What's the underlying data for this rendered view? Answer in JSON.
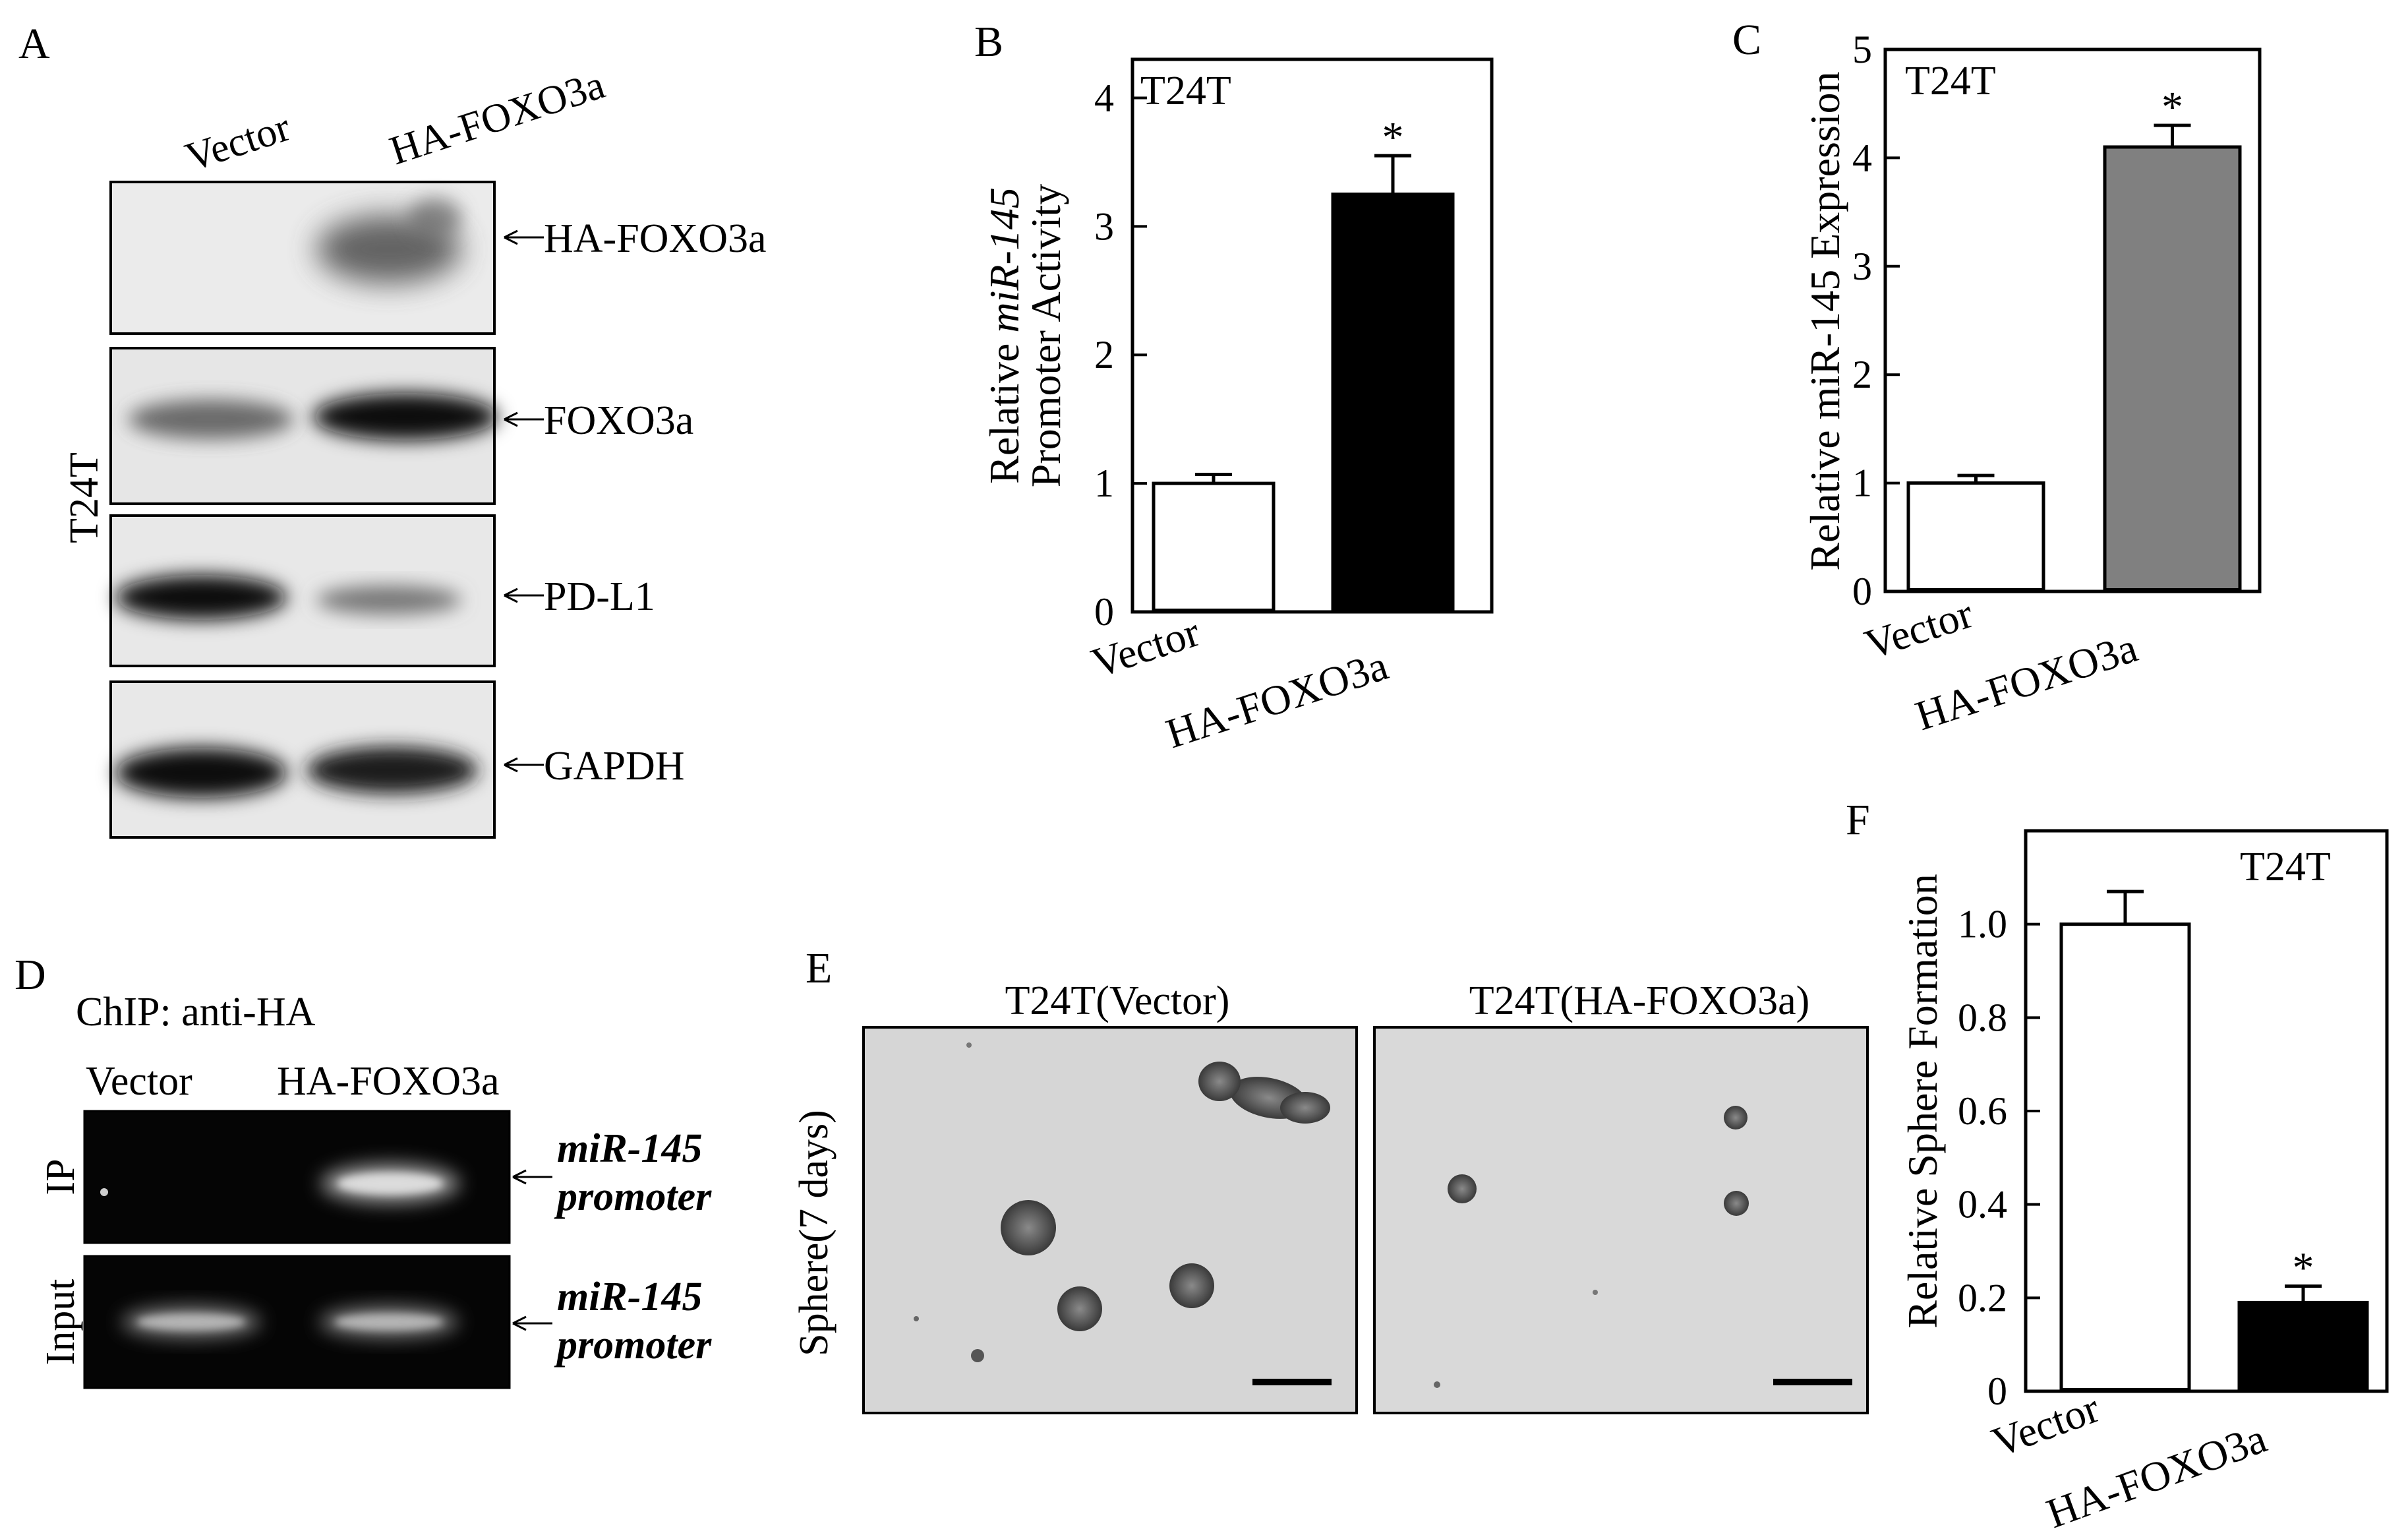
{
  "panels": {
    "A": {
      "letter": "A",
      "lanes": [
        "Vector",
        "HA-FOXO3a"
      ],
      "cell_label": "T24T",
      "blots": [
        "HA-FOXO3a",
        "FOXO3a",
        "PD-L1",
        "GAPDH"
      ]
    },
    "D": {
      "letter": "D",
      "title": "ChIP: anti-HA",
      "lanes": [
        "Vector",
        "HA-FOXO3a"
      ],
      "rows": [
        {
          "label": "IP",
          "target_line1": "miR-145",
          "target_line2": "promoter"
        },
        {
          "label": "Input",
          "target_line1": "miR-145",
          "target_line2": "promoter"
        }
      ]
    },
    "E": {
      "letter": "E",
      "ylabel": "Sphere(7 days)",
      "images": [
        "T24T(Vector)",
        "T24T(HA-FOXO3a)"
      ]
    }
  },
  "chart_data": [
    {
      "panel": "B",
      "type": "bar",
      "inset_label": "T24T",
      "categories": [
        "Vector",
        "HA-FOXO3a"
      ],
      "values": [
        1.0,
        3.25
      ],
      "errors": [
        0.07,
        0.3
      ],
      "significance": [
        "",
        "*"
      ],
      "bar_colors": [
        "#ffffff",
        "#000000"
      ],
      "ylabel_line1_prefix": "Relative ",
      "ylabel_line1_italic": "miR-145",
      "ylabel_line2": "Promoter Activity",
      "ylim": [
        0,
        4.3
      ],
      "yticks": [
        "0",
        "1",
        "2",
        "3",
        "4"
      ]
    },
    {
      "panel": "C",
      "type": "bar",
      "inset_label": "T24T",
      "categories": [
        "Vector",
        "HA-FOXO3a"
      ],
      "values": [
        1.0,
        4.1
      ],
      "errors": [
        0.07,
        0.2
      ],
      "significance": [
        "",
        "*"
      ],
      "bar_colors": [
        "#ffffff",
        "#808080"
      ],
      "ylabel": "Relative miR-145 Expression",
      "ylim": [
        0,
        5.0
      ],
      "yticks": [
        "0",
        "1",
        "2",
        "3",
        "4",
        "5"
      ]
    },
    {
      "panel": "F",
      "type": "bar",
      "inset_label": "T24T",
      "categories": [
        "Vector",
        "HA-FOXO3a"
      ],
      "values": [
        1.0,
        0.19
      ],
      "errors": [
        0.07,
        0.035
      ],
      "significance": [
        "",
        "*"
      ],
      "bar_colors": [
        "#ffffff",
        "#000000"
      ],
      "ylabel": "Relative Sphere Formation",
      "ylim": [
        0,
        1.2
      ],
      "yticks": [
        "0",
        "0.2",
        "0.4",
        "0.6",
        "0.8",
        "1.0"
      ]
    }
  ]
}
